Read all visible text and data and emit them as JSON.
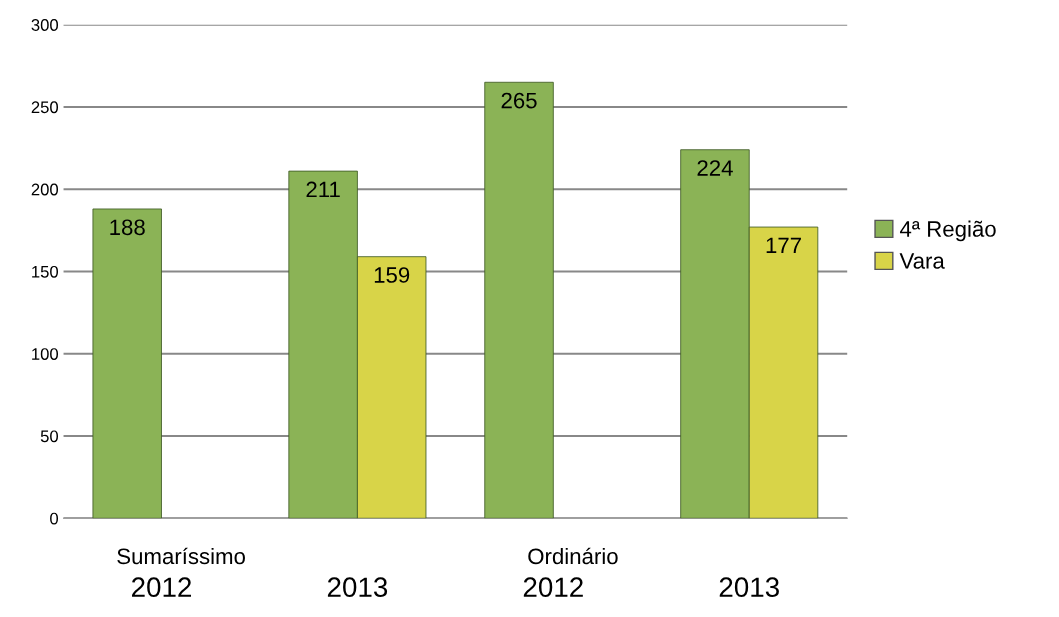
{
  "chart_data": {
    "type": "bar",
    "categories": [
      "2012",
      "2013",
      "2012",
      "2013"
    ],
    "series": [
      {
        "name": "4ª Região",
        "color": "#8bb356",
        "values": [
          188,
          211,
          265,
          224
        ]
      },
      {
        "name": "Vara",
        "color": "#d8d448",
        "values": [
          null,
          159,
          null,
          177
        ]
      }
    ],
    "annotations": [
      "Sumaríssimo",
      "Ordinário"
    ],
    "ylim": [
      0,
      300
    ],
    "yticks": [
      0,
      50,
      100,
      150,
      200,
      250,
      300
    ],
    "grid": "y",
    "legend": "right",
    "data_labels": true
  }
}
